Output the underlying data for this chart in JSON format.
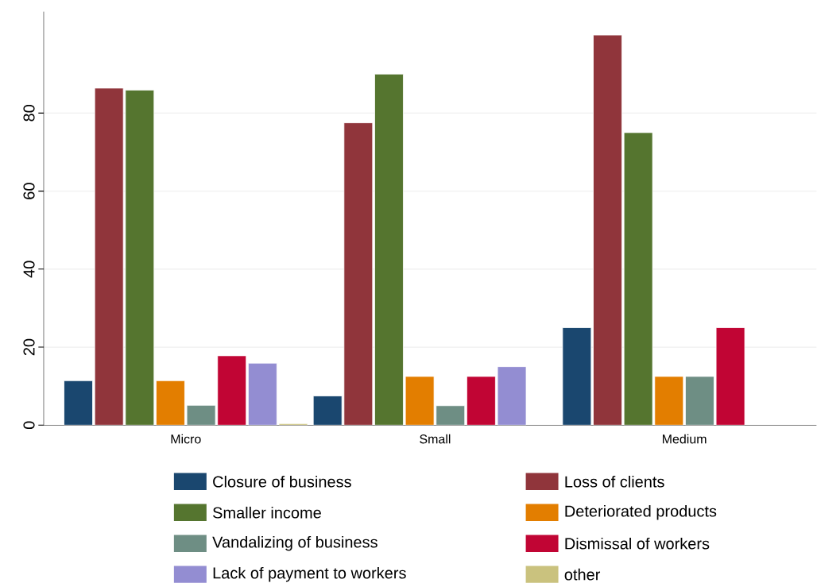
{
  "chart_data": {
    "type": "bar",
    "categories": [
      "Micro",
      "Small",
      "Medium"
    ],
    "series": [
      {
        "name": "Closure of business",
        "color": "#1a476f",
        "values": [
          11.4,
          7.5,
          25
        ]
      },
      {
        "name": "Loss of clients",
        "color": "#90353b",
        "values": [
          86.4,
          77.5,
          100
        ]
      },
      {
        "name": "Smaller income",
        "color": "#55752f",
        "values": [
          85.9,
          90,
          75
        ]
      },
      {
        "name": "Deteriorated products",
        "color": "#e37e00",
        "values": [
          11.4,
          12.5,
          12.5
        ]
      },
      {
        "name": "Vandalizing of business",
        "color": "#6e8e84",
        "values": [
          5.1,
          5,
          12.5
        ]
      },
      {
        "name": "Dismissal of workers",
        "color": "#c10534",
        "values": [
          17.8,
          12.5,
          25
        ]
      },
      {
        "name": "Lack of payment to workers",
        "color": "#938dd2",
        "values": [
          15.9,
          15,
          null
        ]
      },
      {
        "name": "other",
        "color": "#cac27e",
        "values": [
          0.4,
          null,
          null
        ]
      }
    ],
    "ylim": [
      0,
      106
    ],
    "yticks": [
      0,
      20,
      40,
      60,
      80
    ],
    "grid": "y",
    "legend": "bottom"
  }
}
